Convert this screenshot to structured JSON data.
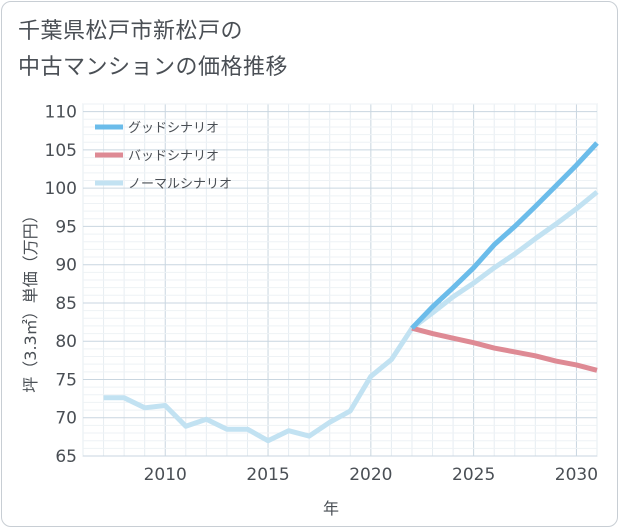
{
  "title": [
    "千葉県松戸市新松戸の",
    "中古マンションの価格推移"
  ],
  "chart_data": {
    "type": "line",
    "xlabel": "年",
    "ylabel": "坪（3.3㎡）単価（万円）",
    "xlim": [
      2006,
      2031
    ],
    "ylim": [
      65,
      111
    ],
    "xticks": [
      2010,
      2015,
      2020,
      2025,
      2030
    ],
    "yticks": [
      65,
      70,
      75,
      80,
      85,
      90,
      95,
      100,
      105,
      110
    ],
    "grid": true,
    "legend_position": "top-left",
    "series": [
      {
        "name": "グッドシナリオ",
        "color": "#6bbcea",
        "x": [
          2022,
          2023,
          2024,
          2025,
          2026,
          2027,
          2028,
          2029,
          2030,
          2031
        ],
        "y": [
          81.7,
          84.5,
          87.0,
          89.6,
          92.6,
          95.0,
          97.6,
          100.3,
          103.0,
          105.9
        ]
      },
      {
        "name": "バッドシナリオ",
        "color": "#de8a94",
        "x": [
          2022,
          2023,
          2024,
          2025,
          2026,
          2027,
          2028,
          2029,
          2030,
          2031
        ],
        "y": [
          81.7,
          81.0,
          80.4,
          79.8,
          79.1,
          78.6,
          78.1,
          77.4,
          76.9,
          76.2
        ]
      },
      {
        "name": "ノーマルシナリオ",
        "color": "#c2e2f2",
        "x": [
          2007,
          2008,
          2009,
          2010,
          2011,
          2012,
          2013,
          2014,
          2015,
          2016,
          2017,
          2018,
          2019,
          2020,
          2021,
          2022,
          2023,
          2024,
          2025,
          2026,
          2027,
          2028,
          2029,
          2030,
          2031
        ],
        "y": [
          72.6,
          72.6,
          71.3,
          71.6,
          68.9,
          69.8,
          68.5,
          68.5,
          67.0,
          68.3,
          67.6,
          69.4,
          70.9,
          75.4,
          77.6,
          81.7,
          83.7,
          85.8,
          87.6,
          89.6,
          91.4,
          93.4,
          95.3,
          97.3,
          99.5
        ]
      }
    ]
  }
}
